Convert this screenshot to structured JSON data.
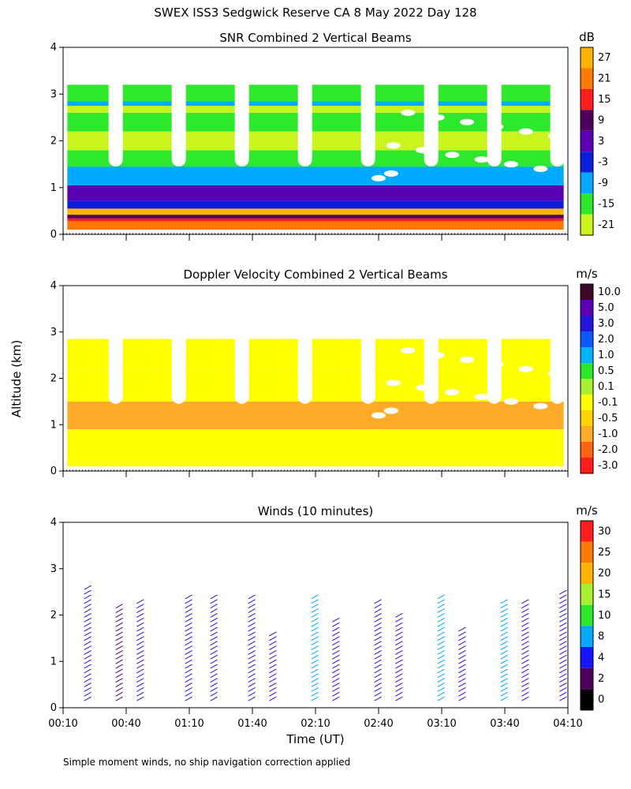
{
  "figure": {
    "title": "SWEX ISS3 Sedgwick Reserve CA   8 May 2022 Day 128",
    "y_axis_label": "Altitude (km)",
    "x_axis_label": "Time (UT)",
    "footnote": "Simple moment winds, no ship navigation correction applied",
    "x_ticks": [
      "00:10",
      "00:40",
      "01:10",
      "01:40",
      "02:10",
      "02:40",
      "03:10",
      "03:40",
      "04:10"
    ],
    "y_ticks": [
      "0",
      "1",
      "2",
      "3",
      "4"
    ]
  },
  "chart_data": [
    {
      "type": "heatmap",
      "title": "SNR Combined 2 Vertical Beams",
      "xlabel": "",
      "ylabel": "Altitude (km)",
      "xlim": [
        0,
        240
      ],
      "ylim": [
        0,
        4
      ],
      "colorbar_unit": "dB",
      "colorbar_labels": [
        "27",
        "21",
        "15",
        "9",
        "3",
        "-3",
        "-9",
        "-15",
        "-21"
      ],
      "colorbar_colors": [
        "#ffb400",
        "#ff7800",
        "#ff1e1e",
        "#50005f",
        "#5a00b4",
        "#0a1edc",
        "#00aaff",
        "#2ee82e",
        "#c8f51e"
      ],
      "layers": [
        {
          "bottom": 0.1,
          "top": 0.28,
          "color": "#ff7800"
        },
        {
          "bottom": 0.28,
          "top": 0.34,
          "color": "#ff1e1e"
        },
        {
          "bottom": 0.34,
          "top": 0.42,
          "color": "#50005f"
        },
        {
          "bottom": 0.42,
          "top": 0.55,
          "color": "#ffb400"
        },
        {
          "bottom": 0.55,
          "top": 0.72,
          "color": "#0a1edc"
        },
        {
          "bottom": 0.72,
          "top": 1.05,
          "color": "#5a00b4"
        },
        {
          "bottom": 1.05,
          "top": 1.45,
          "color": "#00aaff"
        },
        {
          "bottom": 1.45,
          "top": 1.8,
          "color": "#2ee82e"
        },
        {
          "bottom": 1.8,
          "top": 2.2,
          "color": "#c8f51e"
        },
        {
          "bottom": 2.2,
          "top": 2.6,
          "color": "#2ee82e"
        },
        {
          "bottom": 2.6,
          "top": 2.75,
          "color": "#c8f51e"
        },
        {
          "bottom": 2.75,
          "top": 2.85,
          "color": "#00aaff"
        },
        {
          "bottom": 2.85,
          "top": 3.2,
          "color": "#2ee82e"
        }
      ]
    },
    {
      "type": "heatmap",
      "title": "Doppler Velocity Combined 2 Vertical Beams",
      "xlabel": "",
      "ylabel": "Altitude (km)",
      "xlim": [
        0,
        240
      ],
      "ylim": [
        0,
        4
      ],
      "colorbar_unit": "m/s",
      "colorbar_labels": [
        "10.0",
        "5.0",
        "3.0",
        "2.0",
        "1.0",
        "0.5",
        "0.1",
        "-0.1",
        "-0.5",
        "-1.0",
        "-2.0",
        "-3.0"
      ],
      "colorbar_colors": [
        "#3c0a28",
        "#5a00b4",
        "#2814dc",
        "#0a5aff",
        "#00b4ff",
        "#2ee82e",
        "#aaf032",
        "#ffff00",
        "#ffd200",
        "#ffaa28",
        "#ff6414",
        "#ff1e1e"
      ],
      "layers": [
        {
          "bottom": 0.1,
          "top": 0.9,
          "color": "#ffff00"
        },
        {
          "bottom": 0.9,
          "top": 1.5,
          "color": "#ffaa28"
        },
        {
          "bottom": 1.5,
          "top": 2.2,
          "color": "#ffff00"
        },
        {
          "bottom": 2.2,
          "top": 2.85,
          "color": "#ffff00"
        }
      ]
    },
    {
      "type": "scatter",
      "title": "Winds (10 minutes)",
      "xlabel": "Time (UT)",
      "ylabel": "Altitude (km)",
      "xlim": [
        0,
        240
      ],
      "ylim": [
        0,
        4
      ],
      "colorbar_unit": "m/s",
      "colorbar_labels": [
        "30",
        "25",
        "20",
        "15",
        "10",
        "8",
        "4",
        "2",
        "0"
      ],
      "colorbar_colors": [
        "#ff1e1e",
        "#ff7800",
        "#ffb400",
        "#aaf032",
        "#2ee82e",
        "#00aaff",
        "#1414ff",
        "#50005f",
        "#000000"
      ],
      "profiles": [
        {
          "t": 10,
          "top": 2.6,
          "color": "#2814dc"
        },
        {
          "t": 25,
          "top": 2.2,
          "color": "#50005f"
        },
        {
          "t": 35,
          "top": 2.3,
          "color": "#2814dc"
        },
        {
          "t": 58,
          "top": 2.4,
          "color": "#2814dc"
        },
        {
          "t": 70,
          "top": 2.4,
          "color": "#2814dc"
        },
        {
          "t": 88,
          "top": 2.4,
          "color": "#2814dc"
        },
        {
          "t": 98,
          "top": 1.6,
          "color": "#2814dc"
        },
        {
          "t": 118,
          "top": 2.4,
          "color": "#00aaff"
        },
        {
          "t": 128,
          "top": 1.9,
          "color": "#2814dc"
        },
        {
          "t": 148,
          "top": 2.3,
          "color": "#2814dc"
        },
        {
          "t": 158,
          "top": 2.0,
          "color": "#2814dc"
        },
        {
          "t": 178,
          "top": 2.4,
          "color": "#00aaff"
        },
        {
          "t": 188,
          "top": 1.7,
          "color": "#2814dc"
        },
        {
          "t": 208,
          "top": 2.3,
          "color": "#00aaff"
        },
        {
          "t": 218,
          "top": 2.3,
          "color": "#2814dc"
        },
        {
          "t": 236,
          "top": 2.5,
          "color": "#2814dc"
        }
      ]
    }
  ]
}
